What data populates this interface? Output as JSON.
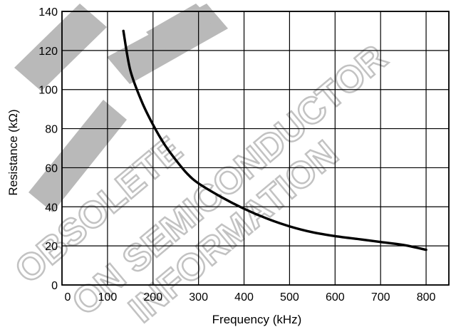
{
  "chart_data": {
    "type": "line",
    "title": "",
    "xlabel": "Frequency (kHz)",
    "ylabel": "Resistance (kΩ)",
    "xlim": [
      0,
      850
    ],
    "ylim": [
      0,
      140
    ],
    "x_ticks": [
      0,
      100,
      200,
      300,
      400,
      500,
      600,
      700,
      800
    ],
    "y_ticks": [
      0,
      20,
      40,
      60,
      80,
      100,
      120,
      140
    ],
    "x_gridlines": [
      0,
      100,
      200,
      300,
      400,
      500,
      600,
      700,
      800,
      850
    ],
    "y_gridlines": [
      0,
      20,
      40,
      60,
      80,
      100,
      120,
      140
    ],
    "grid": true,
    "legend": "none",
    "series": [
      {
        "x": [
          135,
          150,
          175,
          200,
          225,
          250,
          275,
          300,
          350,
          400,
          450,
          500,
          550,
          600,
          650,
          700,
          750,
          800
        ],
        "y": [
          130,
          110,
          94,
          82,
          72,
          64,
          57,
          52,
          45,
          39,
          34,
          30,
          27,
          25,
          23.5,
          22,
          20.5,
          18
        ]
      }
    ]
  },
  "watermark": {
    "lines": [
      "OBSOLETE",
      "ON SEMICONDUCTOR",
      "INFORMATION"
    ]
  }
}
